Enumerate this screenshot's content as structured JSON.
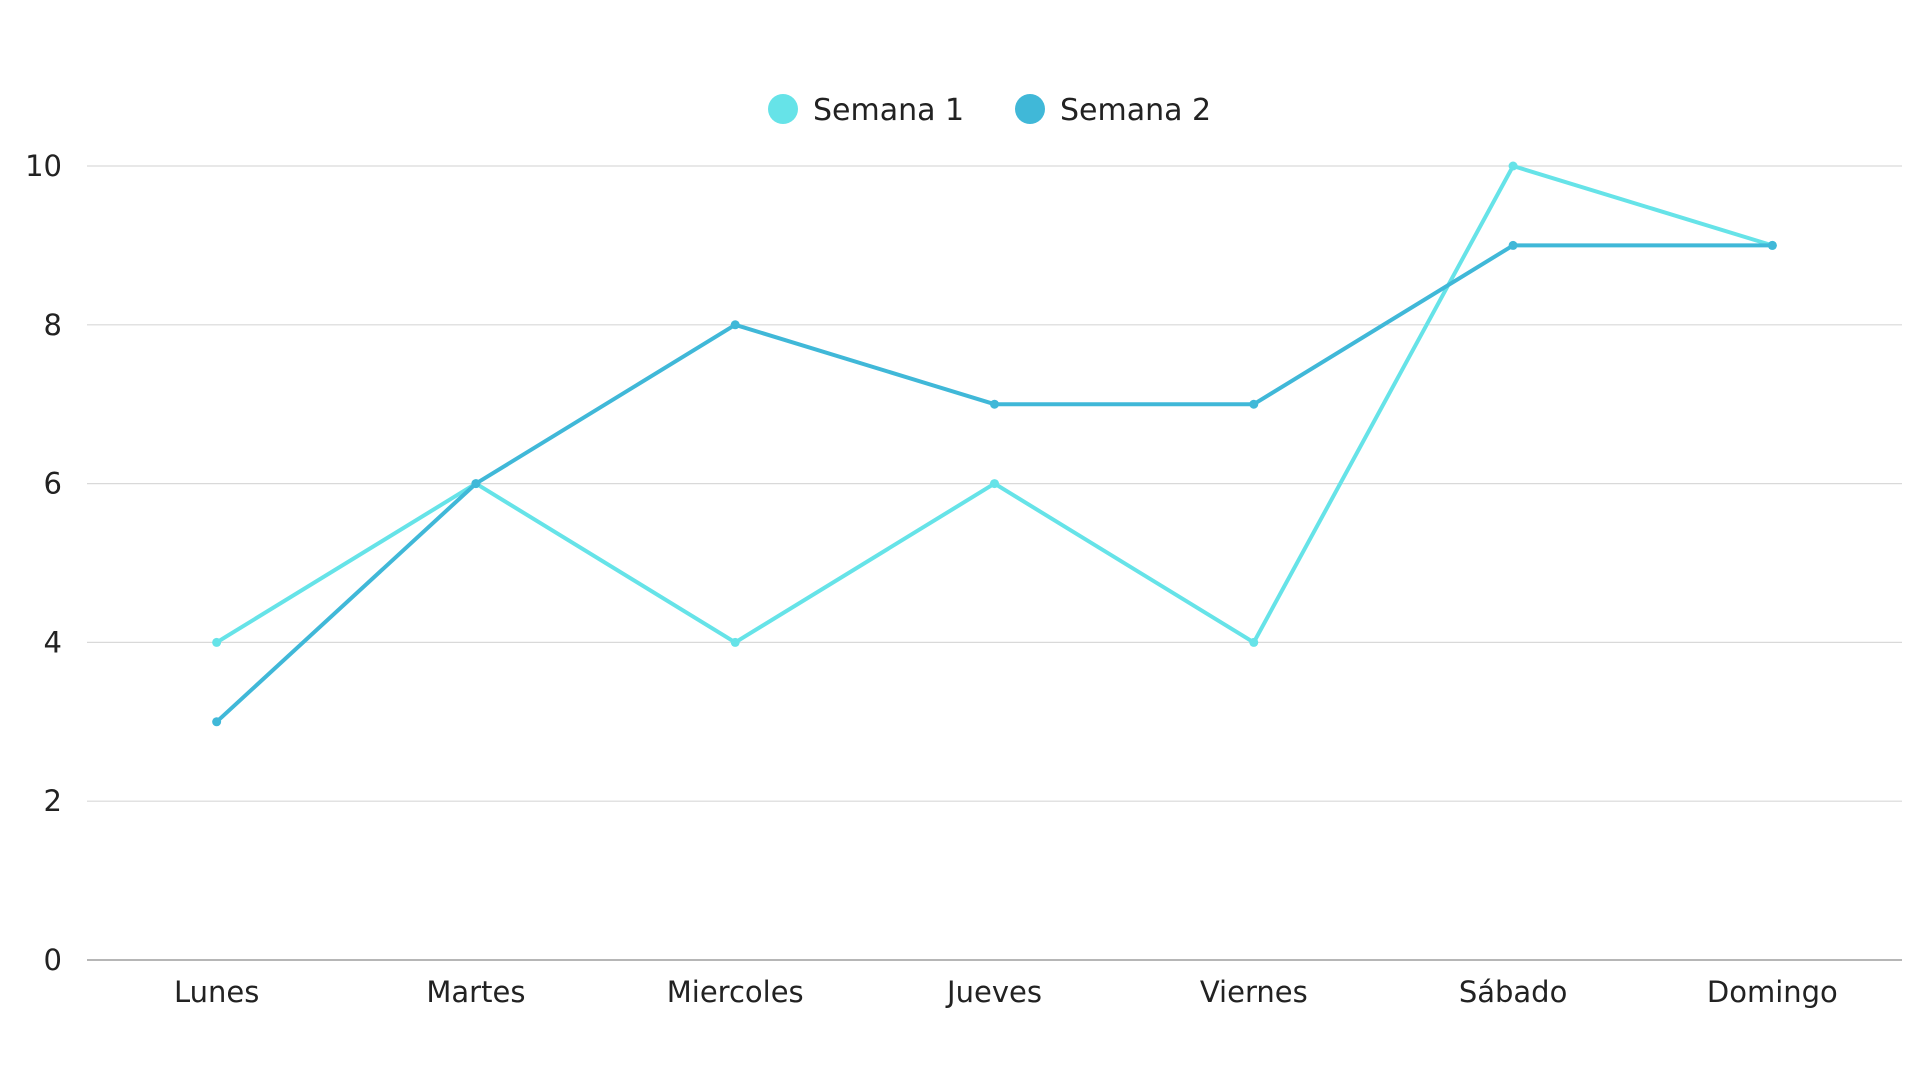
{
  "chart_data": {
    "type": "line",
    "title": "",
    "xlabel": "",
    "ylabel": "",
    "categories": [
      "Lunes",
      "Martes",
      "Miercoles",
      "Jueves",
      "Viernes",
      "Sábado",
      "Domingo"
    ],
    "ylim": [
      0,
      10
    ],
    "yticks": [
      0,
      2,
      4,
      6,
      8,
      10
    ],
    "ytick_labels": [
      "0",
      "2",
      "4",
      "6",
      "8",
      "10"
    ],
    "grid": true,
    "legend_position": "top-center",
    "series": [
      {
        "name": "Semana 1",
        "color": "#66e3e8",
        "values": [
          4,
          6,
          4,
          6,
          4,
          10,
          9
        ]
      },
      {
        "name": "Semana 2",
        "color": "#40b8d8",
        "values": [
          3,
          6,
          8,
          7,
          7,
          9,
          9
        ]
      }
    ]
  }
}
